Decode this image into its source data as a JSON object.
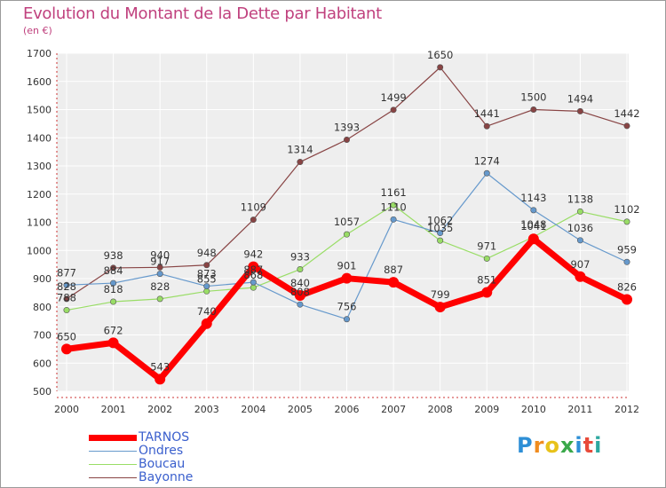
{
  "title": "Evolution du Montant de la Dette par Habitant",
  "subtitle": "(en €)",
  "logo": {
    "letters": [
      "P",
      "r",
      "o",
      "x",
      "i",
      "t",
      "i"
    ],
    "colors": [
      "#2e8fd6",
      "#f08c1e",
      "#e8c21a",
      "#3aa84a",
      "#2e8fd6",
      "#e84a3a",
      "#2ea8a0"
    ]
  },
  "chart_data": {
    "type": "line",
    "x": [
      "2000",
      "2001",
      "2002",
      "2003",
      "2004",
      "2005",
      "2006",
      "2007",
      "2008",
      "2009",
      "2010",
      "2011",
      "2012"
    ],
    "ylim": [
      500,
      1700
    ],
    "yticks": [
      "500",
      "600",
      "700",
      "800",
      "900",
      "1000",
      "1100",
      "1200",
      "1300",
      "1400",
      "1500",
      "1600",
      "1700"
    ],
    "grid": true,
    "legend_position": "bottom-left",
    "series": [
      {
        "name": "TARNOS",
        "color": "#ff0000",
        "values": [
          650,
          672,
          543,
          740,
          942,
          840,
          901,
          887,
          799,
          851,
          1041,
          907,
          826
        ]
      },
      {
        "name": "Ondres",
        "color": "#6699cc",
        "values": [
          877,
          884,
          917,
          873,
          887,
          808,
          756,
          1110,
          1062,
          1274,
          1143,
          1036,
          959
        ]
      },
      {
        "name": "Boucau",
        "color": "#99dd66",
        "values": [
          788,
          818,
          828,
          855,
          868,
          933,
          1057,
          1161,
          1035,
          971,
          1048,
          1138,
          1102
        ]
      },
      {
        "name": "Bayonne",
        "color": "#884444",
        "values": [
          828,
          938,
          940,
          948,
          1109,
          1314,
          1393,
          1499,
          1650,
          1441,
          1500,
          1494,
          1442
        ]
      }
    ]
  }
}
